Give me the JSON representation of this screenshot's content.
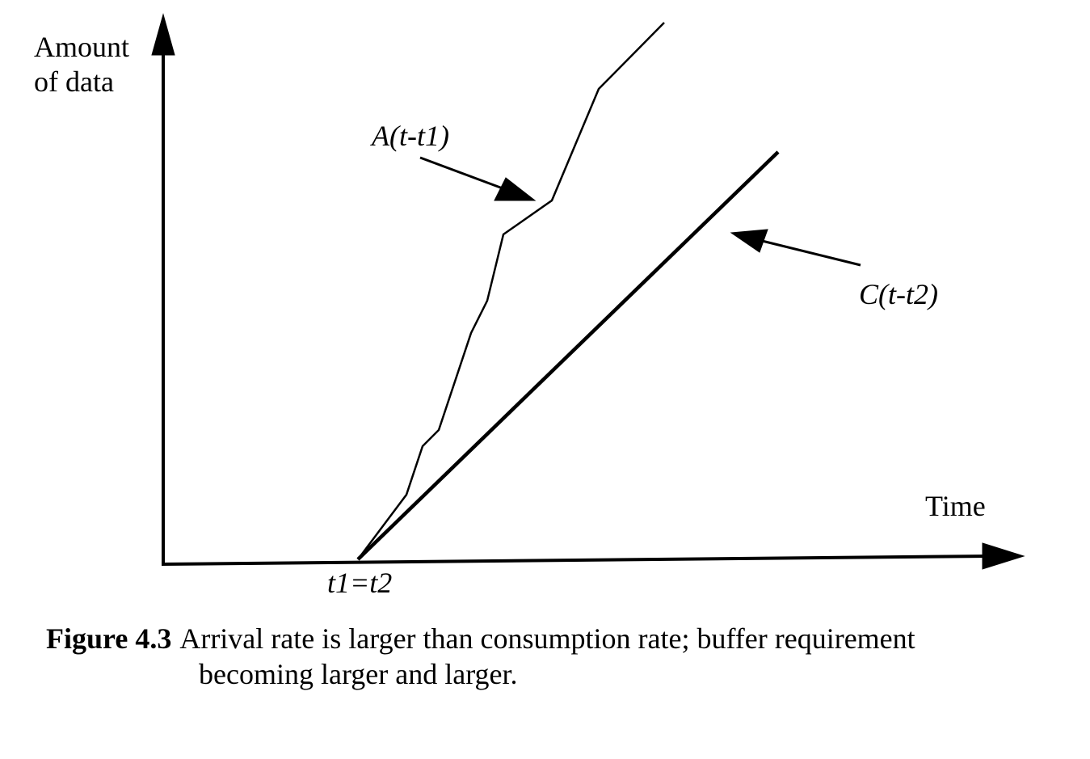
{
  "y_axis_label": [
    "Amount",
    "of data"
  ],
  "x_axis_label": "Time",
  "origin_label": "t1=t2",
  "curves": [
    {
      "label": "A(t-t1)"
    },
    {
      "label": "C(t-t2)"
    }
  ],
  "caption": {
    "number": "Figure 4.3",
    "text": [
      "Arrival rate is larger than consumption rate; buffer requirement",
      "becoming larger and larger."
    ]
  }
}
